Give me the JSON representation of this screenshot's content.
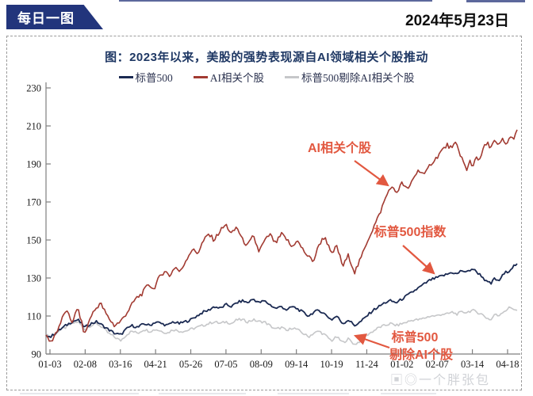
{
  "header": {
    "badge": "每日一图",
    "date": "2024年5月23日"
  },
  "watermark": {
    "glyphs": "▣◎",
    "text": "一个胖张包"
  },
  "chart_data": {
    "type": "line",
    "title": "图：2023年以来，美股的强势表现源自AI领域相关个股推动",
    "xlabel": "",
    "ylabel": "",
    "ylim": [
      90,
      230
    ],
    "y_ticks": [
      90,
      110,
      130,
      150,
      170,
      190,
      210,
      230
    ],
    "x_tick_labels": [
      "01-03",
      "02-08",
      "03-16",
      "04-21",
      "05-26",
      "07-05",
      "08-09",
      "09-14",
      "10-19",
      "11-24",
      "01-02",
      "02-07",
      "03-14",
      "04-18"
    ],
    "grid": false,
    "legend_position": "top",
    "base_index": 100,
    "series": [
      {
        "name": "标普500剔除AI相关个股",
        "color": "#c6c7c9",
        "width": 1.6,
        "jitter": 0.7,
        "points": [
          [
            0,
            100
          ],
          [
            0.01,
            99
          ],
          [
            0.025,
            102
          ],
          [
            0.042,
            104
          ],
          [
            0.055,
            106
          ],
          [
            0.068,
            107
          ],
          [
            0.082,
            103
          ],
          [
            0.095,
            105
          ],
          [
            0.108,
            106
          ],
          [
            0.12,
            104
          ],
          [
            0.132,
            101
          ],
          [
            0.145,
            99
          ],
          [
            0.158,
            97
          ],
          [
            0.17,
            100
          ],
          [
            0.182,
            102
          ],
          [
            0.195,
            101
          ],
          [
            0.208,
            103
          ],
          [
            0.22,
            102
          ],
          [
            0.233,
            103
          ],
          [
            0.245,
            102
          ],
          [
            0.258,
            101
          ],
          [
            0.27,
            103
          ],
          [
            0.283,
            102
          ],
          [
            0.295,
            102
          ],
          [
            0.307,
            103
          ],
          [
            0.32,
            104
          ],
          [
            0.333,
            105
          ],
          [
            0.345,
            106
          ],
          [
            0.357,
            107
          ],
          [
            0.37,
            106
          ],
          [
            0.382,
            107
          ],
          [
            0.394,
            106
          ],
          [
            0.405,
            108
          ],
          [
            0.417,
            108
          ],
          [
            0.428,
            107
          ],
          [
            0.44,
            108
          ],
          [
            0.452,
            107
          ],
          [
            0.463,
            107
          ],
          [
            0.475,
            105
          ],
          [
            0.487,
            103
          ],
          [
            0.5,
            104
          ],
          [
            0.512,
            102
          ],
          [
            0.522,
            104
          ],
          [
            0.532,
            103
          ],
          [
            0.545,
            101
          ],
          [
            0.557,
            99
          ],
          [
            0.568,
            101
          ],
          [
            0.58,
            102
          ],
          [
            0.592,
            100
          ],
          [
            0.606,
            97
          ],
          [
            0.617,
            99
          ],
          [
            0.63,
            96
          ],
          [
            0.642,
            98
          ],
          [
            0.655,
            95
          ],
          [
            0.668,
            97
          ],
          [
            0.681,
            100
          ],
          [
            0.694,
            102
          ],
          [
            0.707,
            104
          ],
          [
            0.719,
            105
          ],
          [
            0.731,
            106
          ],
          [
            0.744,
            105
          ],
          [
            0.756,
            106
          ],
          [
            0.768,
            107
          ],
          [
            0.78,
            108
          ],
          [
            0.792,
            108
          ],
          [
            0.804,
            109
          ],
          [
            0.816,
            110
          ],
          [
            0.828,
            110
          ],
          [
            0.84,
            111
          ],
          [
            0.852,
            111
          ],
          [
            0.862,
            112
          ],
          [
            0.872,
            111
          ],
          [
            0.882,
            112
          ],
          [
            0.893,
            112
          ],
          [
            0.905,
            113
          ],
          [
            0.915,
            112
          ],
          [
            0.925,
            111
          ],
          [
            0.935,
            109
          ],
          [
            0.945,
            108
          ],
          [
            0.952,
            111
          ],
          [
            0.96,
            110
          ],
          [
            0.968,
            112
          ],
          [
            0.976,
            113
          ],
          [
            0.984,
            114.5
          ],
          [
            0.991,
            114
          ],
          [
            1,
            113
          ]
        ]
      },
      {
        "name": "标普500",
        "color": "#1b2a52",
        "width": 1.8,
        "jitter": 0.7,
        "points": [
          [
            0,
            100
          ],
          [
            0.01,
            99
          ],
          [
            0.025,
            102
          ],
          [
            0.042,
            105
          ],
          [
            0.055,
            107
          ],
          [
            0.068,
            108
          ],
          [
            0.082,
            104
          ],
          [
            0.095,
            106
          ],
          [
            0.108,
            107
          ],
          [
            0.12,
            105
          ],
          [
            0.132,
            103
          ],
          [
            0.145,
            101
          ],
          [
            0.158,
            100
          ],
          [
            0.17,
            103
          ],
          [
            0.182,
            105
          ],
          [
            0.195,
            104
          ],
          [
            0.208,
            106
          ],
          [
            0.22,
            105
          ],
          [
            0.233,
            107
          ],
          [
            0.245,
            106
          ],
          [
            0.258,
            105
          ],
          [
            0.27,
            107
          ],
          [
            0.283,
            106
          ],
          [
            0.295,
            107
          ],
          [
            0.307,
            108
          ],
          [
            0.32,
            110
          ],
          [
            0.333,
            112
          ],
          [
            0.345,
            113
          ],
          [
            0.357,
            115
          ],
          [
            0.37,
            114
          ],
          [
            0.382,
            116
          ],
          [
            0.394,
            115
          ],
          [
            0.405,
            117
          ],
          [
            0.417,
            118
          ],
          [
            0.428,
            117
          ],
          [
            0.44,
            119
          ],
          [
            0.452,
            117
          ],
          [
            0.463,
            118
          ],
          [
            0.475,
            116
          ],
          [
            0.487,
            114
          ],
          [
            0.5,
            115
          ],
          [
            0.512,
            113
          ],
          [
            0.522,
            115
          ],
          [
            0.532,
            114
          ],
          [
            0.545,
            112
          ],
          [
            0.557,
            110
          ],
          [
            0.568,
            112
          ],
          [
            0.58,
            113
          ],
          [
            0.592,
            111
          ],
          [
            0.606,
            108
          ],
          [
            0.617,
            110
          ],
          [
            0.63,
            106
          ],
          [
            0.642,
            108
          ],
          [
            0.655,
            105
          ],
          [
            0.668,
            107
          ],
          [
            0.681,
            110
          ],
          [
            0.694,
            113
          ],
          [
            0.707,
            115
          ],
          [
            0.719,
            117
          ],
          [
            0.731,
            118
          ],
          [
            0.744,
            117
          ],
          [
            0.756,
            119
          ],
          [
            0.768,
            121
          ],
          [
            0.78,
            123
          ],
          [
            0.792,
            125
          ],
          [
            0.804,
            127
          ],
          [
            0.816,
            129
          ],
          [
            0.828,
            130
          ],
          [
            0.84,
            131
          ],
          [
            0.852,
            132
          ],
          [
            0.862,
            133
          ],
          [
            0.872,
            132
          ],
          [
            0.882,
            134
          ],
          [
            0.893,
            133
          ],
          [
            0.905,
            135
          ],
          [
            0.915,
            133
          ],
          [
            0.925,
            131
          ],
          [
            0.935,
            128
          ],
          [
            0.945,
            127
          ],
          [
            0.952,
            130
          ],
          [
            0.96,
            128
          ],
          [
            0.968,
            131
          ],
          [
            0.976,
            133
          ],
          [
            0.984,
            134
          ],
          [
            0.991,
            136
          ],
          [
            1,
            137.5
          ]
        ]
      },
      {
        "name": "AI相关个股",
        "color": "#a23b32",
        "width": 1.6,
        "jitter": 1.2,
        "points": [
          [
            0,
            100
          ],
          [
            0.01,
            96
          ],
          [
            0.025,
            103
          ],
          [
            0.042,
            113
          ],
          [
            0.055,
            107
          ],
          [
            0.068,
            114
          ],
          [
            0.082,
            100
          ],
          [
            0.095,
            110
          ],
          [
            0.115,
            117
          ],
          [
            0.13,
            110
          ],
          [
            0.145,
            105
          ],
          [
            0.158,
            107
          ],
          [
            0.175,
            113
          ],
          [
            0.19,
            119
          ],
          [
            0.205,
            122
          ],
          [
            0.218,
            127
          ],
          [
            0.228,
            124
          ],
          [
            0.24,
            130
          ],
          [
            0.252,
            134
          ],
          [
            0.262,
            131
          ],
          [
            0.274,
            136
          ],
          [
            0.285,
            133
          ],
          [
            0.298,
            140
          ],
          [
            0.31,
            145
          ],
          [
            0.322,
            143
          ],
          [
            0.333,
            149
          ],
          [
            0.345,
            153
          ],
          [
            0.357,
            150
          ],
          [
            0.37,
            155
          ],
          [
            0.382,
            158
          ],
          [
            0.394,
            153
          ],
          [
            0.405,
            157
          ],
          [
            0.417,
            150
          ],
          [
            0.428,
            147
          ],
          [
            0.44,
            152
          ],
          [
            0.452,
            144
          ],
          [
            0.463,
            149
          ],
          [
            0.475,
            153
          ],
          [
            0.487,
            148
          ],
          [
            0.5,
            153
          ],
          [
            0.512,
            150
          ],
          [
            0.522,
            146
          ],
          [
            0.532,
            150
          ],
          [
            0.545,
            145
          ],
          [
            0.557,
            141
          ],
          [
            0.568,
            139
          ],
          [
            0.58,
            148
          ],
          [
            0.592,
            152
          ],
          [
            0.606,
            142
          ],
          [
            0.617,
            147
          ],
          [
            0.63,
            136
          ],
          [
            0.642,
            142
          ],
          [
            0.655,
            133
          ],
          [
            0.668,
            140
          ],
          [
            0.681,
            149
          ],
          [
            0.694,
            156
          ],
          [
            0.707,
            163
          ],
          [
            0.719,
            171
          ],
          [
            0.731,
            178
          ],
          [
            0.744,
            175
          ],
          [
            0.756,
            180
          ],
          [
            0.768,
            176
          ],
          [
            0.78,
            183
          ],
          [
            0.792,
            187
          ],
          [
            0.804,
            184
          ],
          [
            0.816,
            190
          ],
          [
            0.828,
            193
          ],
          [
            0.84,
            197
          ],
          [
            0.852,
            200
          ],
          [
            0.862,
            198
          ],
          [
            0.87,
            201
          ],
          [
            0.878,
            196
          ],
          [
            0.886,
            191
          ],
          [
            0.893,
            186
          ],
          [
            0.9,
            192
          ],
          [
            0.906,
            188
          ],
          [
            0.913,
            195
          ],
          [
            0.92,
            191
          ],
          [
            0.928,
            198
          ],
          [
            0.936,
            201
          ],
          [
            0.944,
            199
          ],
          [
            0.952,
            202
          ],
          [
            0.96,
            199
          ],
          [
            0.968,
            203
          ],
          [
            0.976,
            200
          ],
          [
            0.984,
            204
          ],
          [
            0.991,
            203
          ],
          [
            1,
            208
          ]
        ]
      }
    ],
    "annotations": [
      {
        "text": "AI相关个股",
        "color": "#e25840"
      },
      {
        "text": "标普500指数",
        "color": "#e25840"
      },
      {
        "text": "标普500",
        "text2": "剔除AI个股",
        "color": "#e25840"
      }
    ]
  }
}
